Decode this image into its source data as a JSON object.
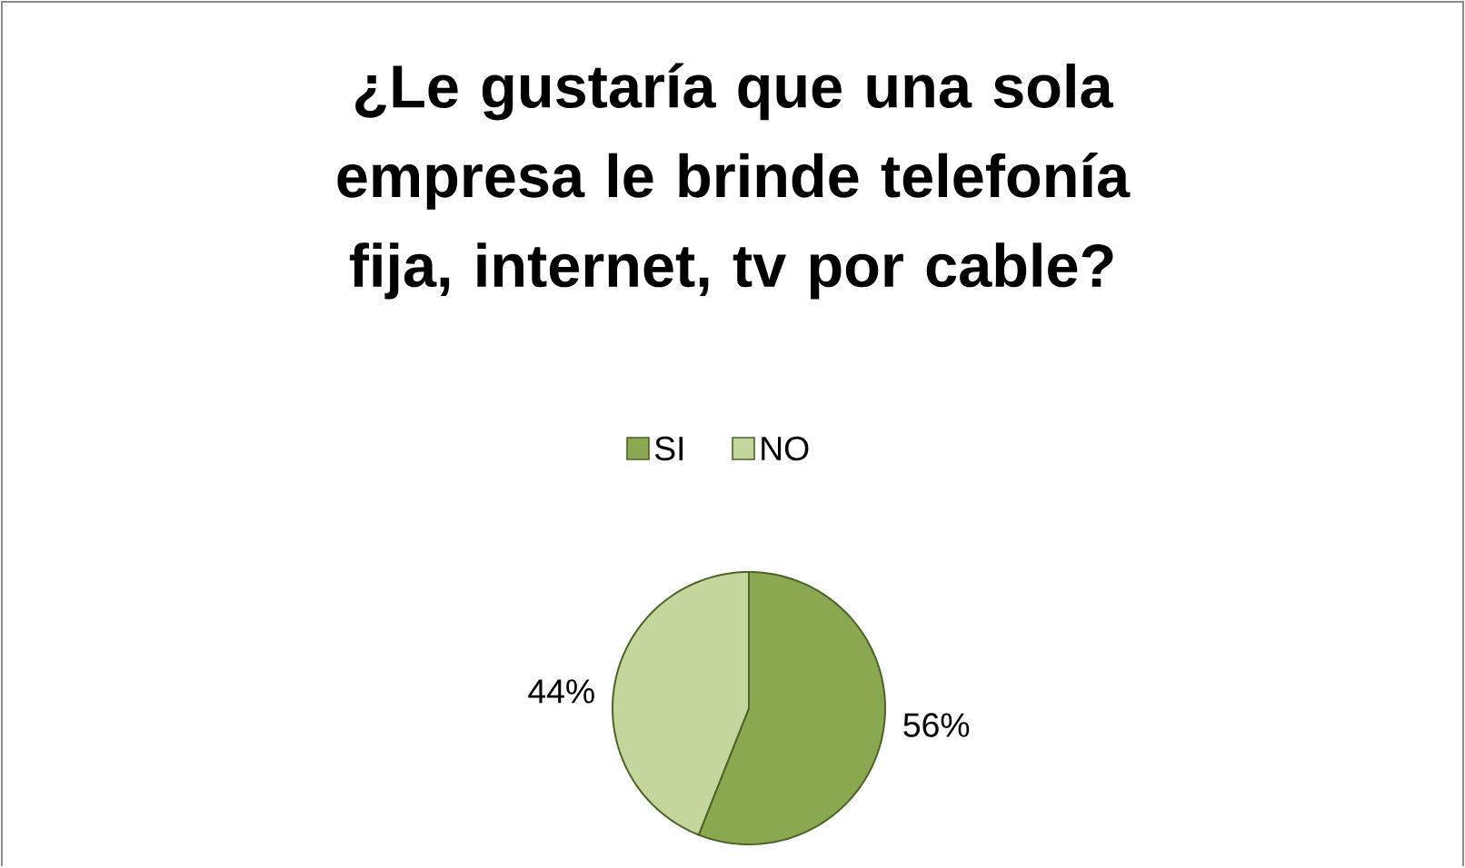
{
  "chart_data": {
    "type": "pie",
    "title": "¿Le gustaría que una sola empresa le brinde telefonía fija, internet, tv por cable?",
    "categories": [
      "SI",
      "NO"
    ],
    "values": [
      56,
      44
    ],
    "value_labels": [
      "56%",
      "44%"
    ],
    "colors": [
      "#8aa84f",
      "#c3d69b"
    ],
    "legend": "top"
  }
}
